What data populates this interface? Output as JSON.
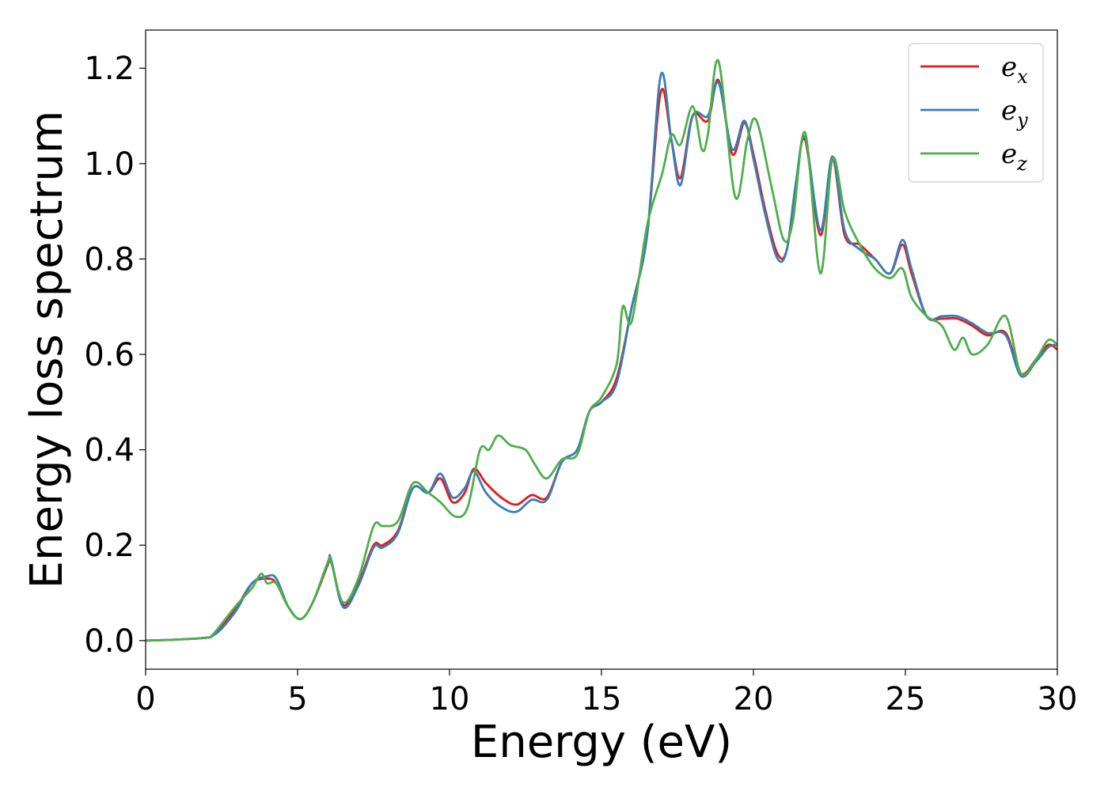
{
  "chart_data": {
    "type": "line",
    "title": "",
    "xlabel": "Energy (eV)",
    "ylabel": "Energy loss spectrum",
    "xlim": [
      0,
      30
    ],
    "ylim": [
      -0.06,
      1.28
    ],
    "xticks": [
      0,
      5,
      10,
      15,
      20,
      25,
      30
    ],
    "xtick_labels": [
      "0",
      "5",
      "10",
      "15",
      "20",
      "25",
      "30"
    ],
    "yticks": [
      0.0,
      0.2,
      0.4,
      0.6,
      0.8,
      1.0,
      1.2
    ],
    "ytick_labels": [
      "0.0",
      "0.2",
      "0.4",
      "0.6",
      "0.8",
      "1.0",
      "1.2"
    ],
    "grid": false,
    "legend_position": "top-right",
    "series": [
      {
        "name": "e_x",
        "legend_base": "e",
        "legend_sub": "x",
        "color": "#e41a1c",
        "x": [
          0,
          1,
          2,
          2.2,
          2.5,
          3,
          3.5,
          4,
          4.3,
          4.7,
          5.1,
          5.5,
          6,
          6.1,
          6.5,
          7,
          7.5,
          7.8,
          8.3,
          8.8,
          9.3,
          9.7,
          10.1,
          10.5,
          10.8,
          11.2,
          11.7,
          12.2,
          12.7,
          13.2,
          13.7,
          14.2,
          14.6,
          15,
          15.5,
          16,
          16.5,
          16.95,
          17.3,
          17.6,
          18,
          18.5,
          18.85,
          19.3,
          19.7,
          20,
          20.4,
          20.8,
          21.1,
          21.4,
          21.7,
          22.2,
          22.6,
          23,
          23.5,
          24,
          24.5,
          24.9,
          25.2,
          25.7,
          26.2,
          26.7,
          27.2,
          27.7,
          28.3,
          28.8,
          29.3,
          29.7,
          30
        ],
        "y": [
          0.0,
          0.002,
          0.006,
          0.01,
          0.03,
          0.07,
          0.12,
          0.13,
          0.12,
          0.07,
          0.045,
          0.08,
          0.16,
          0.17,
          0.075,
          0.12,
          0.2,
          0.2,
          0.23,
          0.32,
          0.31,
          0.34,
          0.29,
          0.31,
          0.36,
          0.33,
          0.3,
          0.285,
          0.305,
          0.3,
          0.375,
          0.4,
          0.48,
          0.5,
          0.55,
          0.7,
          0.85,
          1.15,
          1.05,
          0.97,
          1.1,
          1.09,
          1.175,
          1.02,
          1.085,
          1.02,
          0.9,
          0.81,
          0.82,
          0.96,
          1.05,
          0.85,
          1.01,
          0.85,
          0.83,
          0.8,
          0.77,
          0.83,
          0.77,
          0.68,
          0.675,
          0.675,
          0.66,
          0.64,
          0.645,
          0.56,
          0.59,
          0.62,
          0.61
        ]
      },
      {
        "name": "e_y",
        "legend_base": "e",
        "legend_sub": "y",
        "color": "#377eb8",
        "x": [
          0,
          1,
          2,
          2.2,
          2.5,
          3,
          3.5,
          4,
          4.3,
          4.7,
          5.1,
          5.5,
          6,
          6.1,
          6.5,
          7,
          7.5,
          7.8,
          8.3,
          8.8,
          9.3,
          9.7,
          10.1,
          10.5,
          10.8,
          11.2,
          11.7,
          12.2,
          12.7,
          13.2,
          13.7,
          14.2,
          14.6,
          15,
          15.5,
          16,
          16.5,
          16.95,
          17.3,
          17.6,
          18,
          18.5,
          18.85,
          19.3,
          19.7,
          20,
          20.4,
          20.8,
          21.1,
          21.4,
          21.7,
          22.2,
          22.6,
          23,
          23.5,
          24,
          24.5,
          24.9,
          25.2,
          25.7,
          26.2,
          26.7,
          27.2,
          27.7,
          28.3,
          28.8,
          29.3,
          29.7,
          30
        ],
        "y": [
          0.0,
          0.002,
          0.006,
          0.01,
          0.025,
          0.065,
          0.12,
          0.135,
          0.13,
          0.07,
          0.045,
          0.08,
          0.165,
          0.17,
          0.07,
          0.115,
          0.195,
          0.195,
          0.225,
          0.32,
          0.31,
          0.35,
          0.3,
          0.32,
          0.355,
          0.31,
          0.28,
          0.27,
          0.295,
          0.295,
          0.375,
          0.4,
          0.48,
          0.5,
          0.54,
          0.7,
          0.85,
          1.185,
          1.05,
          0.955,
          1.1,
          1.1,
          1.17,
          1.03,
          1.09,
          1.01,
          0.89,
          0.8,
          0.82,
          0.96,
          1.055,
          0.86,
          1.015,
          0.86,
          0.82,
          0.8,
          0.77,
          0.84,
          0.78,
          0.68,
          0.68,
          0.68,
          0.665,
          0.645,
          0.64,
          0.555,
          0.585,
          0.615,
          0.62
        ]
      },
      {
        "name": "e_z",
        "legend_base": "e",
        "legend_sub": "z",
        "color": "#4daf4a",
        "x": [
          0,
          1,
          2,
          2.2,
          2.5,
          3,
          3.5,
          3.8,
          4,
          4.3,
          4.7,
          5.1,
          5.5,
          6,
          6.1,
          6.5,
          7,
          7.5,
          7.8,
          8.3,
          8.8,
          9.3,
          9.7,
          10.2,
          10.6,
          11,
          11.3,
          11.6,
          12,
          12.5,
          12.8,
          13.2,
          13.7,
          14.2,
          14.6,
          15,
          15.5,
          15.7,
          16,
          16.5,
          17,
          17.3,
          17.6,
          18,
          18.3,
          18.5,
          18.85,
          19.4,
          19.8,
          20.1,
          20.6,
          21,
          21.3,
          21.7,
          22.2,
          22.6,
          23,
          23.5,
          24,
          24.5,
          24.9,
          25.2,
          25.7,
          26.2,
          26.6,
          26.9,
          27.2,
          27.7,
          28.3,
          28.8,
          29.3,
          29.7,
          30
        ],
        "y": [
          0.0,
          0.002,
          0.006,
          0.012,
          0.035,
          0.075,
          0.11,
          0.14,
          0.12,
          0.12,
          0.07,
          0.045,
          0.08,
          0.165,
          0.165,
          0.08,
          0.13,
          0.24,
          0.24,
          0.25,
          0.33,
          0.31,
          0.29,
          0.26,
          0.28,
          0.4,
          0.4,
          0.43,
          0.41,
          0.4,
          0.37,
          0.34,
          0.38,
          0.39,
          0.48,
          0.51,
          0.58,
          0.7,
          0.67,
          0.87,
          0.98,
          1.06,
          1.04,
          1.12,
          1.03,
          1.06,
          1.215,
          0.93,
          1.05,
          1.09,
          0.95,
          0.84,
          0.88,
          1.065,
          0.77,
          1.01,
          0.9,
          0.83,
          0.78,
          0.76,
          0.78,
          0.72,
          0.68,
          0.66,
          0.61,
          0.635,
          0.6,
          0.62,
          0.68,
          0.56,
          0.59,
          0.63,
          0.62
        ]
      }
    ]
  }
}
